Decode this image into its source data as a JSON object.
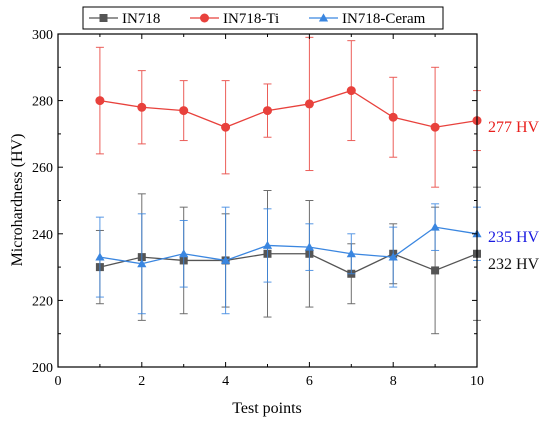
{
  "chart_data": {
    "type": "line",
    "xlabel": "Test points",
    "ylabel": "Microhardness (HV)",
    "xlim": [
      0,
      10
    ],
    "ylim": [
      200,
      300
    ],
    "x_ticks": [
      0,
      2,
      4,
      6,
      8,
      10
    ],
    "y_ticks": [
      200,
      220,
      240,
      260,
      280,
      300
    ],
    "grid": false,
    "legend_position": "top",
    "x": [
      1,
      2,
      3,
      4,
      5,
      6,
      7,
      8,
      9,
      10
    ],
    "series": [
      {
        "name": "IN718",
        "color": "#555555",
        "marker": "square",
        "values": [
          230,
          233,
          232,
          232,
          234,
          234,
          228,
          234,
          229,
          234
        ],
        "errors": [
          11,
          19,
          16,
          14,
          19,
          16,
          9,
          9,
          19,
          20
        ]
      },
      {
        "name": "IN718-Ti",
        "color": "#e8413c",
        "marker": "circle",
        "values": [
          280,
          278,
          277,
          272,
          277,
          279,
          283,
          275,
          272,
          274
        ],
        "errors": [
          16,
          11,
          9,
          14,
          8,
          20,
          15,
          12,
          18,
          9
        ]
      },
      {
        "name": "IN718-Ceram",
        "color": "#3a86e0",
        "marker": "triangle",
        "values": [
          233,
          231,
          234,
          232,
          236.5,
          236,
          234,
          233,
          242,
          240
        ],
        "errors": [
          12,
          15,
          10,
          16,
          11,
          7,
          6,
          9,
          7,
          8
        ]
      }
    ],
    "annotations": [
      {
        "text": "277 HV",
        "color": "#e8201e",
        "y": 272
      },
      {
        "text": "235 HV",
        "color": "#1a1ae0",
        "y": 239
      },
      {
        "text": "232 HV",
        "color": "#111111",
        "y": 231
      }
    ]
  }
}
